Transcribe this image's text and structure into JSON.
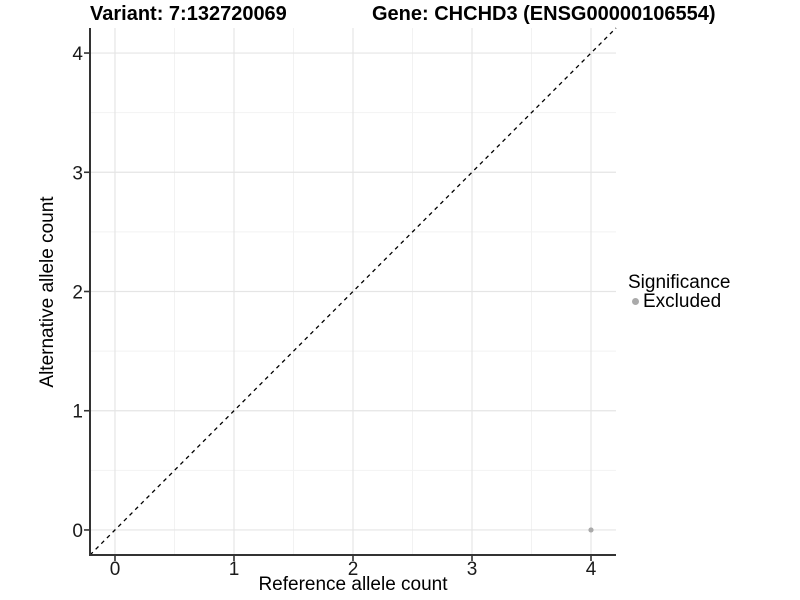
{
  "header": {
    "variant_title": "Variant: 7:132720069",
    "gene_title": "Gene: CHCHD3 (ENSG00000106554)"
  },
  "legend": {
    "title": "Significance",
    "items": [
      {
        "label": "Excluded",
        "marker": "circle-icon",
        "color": "#aaaaaa"
      }
    ]
  },
  "chart_data": {
    "type": "scatter",
    "title": "Variant: 7:132720069    Gene: CHCHD3 (ENSG00000106554)",
    "xlabel": "Reference allele count",
    "ylabel": "Alternative allele count",
    "xlim": [
      -0.21,
      4.21
    ],
    "ylim": [
      -0.21,
      4.21
    ],
    "x_ticks": [
      0,
      1,
      2,
      3,
      4
    ],
    "y_ticks": [
      0,
      1,
      2,
      3,
      4
    ],
    "grid": "major and minor, light gray on white panel",
    "legend_position": "right",
    "series": [
      {
        "name": "Excluded",
        "color": "#aaaaaa",
        "points": [
          {
            "x": 4,
            "y": 0
          }
        ]
      }
    ],
    "annotations": [
      {
        "type": "reference-line",
        "equation": "y = x",
        "style": "dashed",
        "color": "#000000"
      }
    ]
  },
  "style": {
    "background": "#ffffff",
    "grid_major_color": "#e5e5e5",
    "grid_minor_color": "#f2f2f2",
    "axis_line_color": "#333333",
    "tick_color": "#333333",
    "point_color": "#aaaaaa"
  }
}
